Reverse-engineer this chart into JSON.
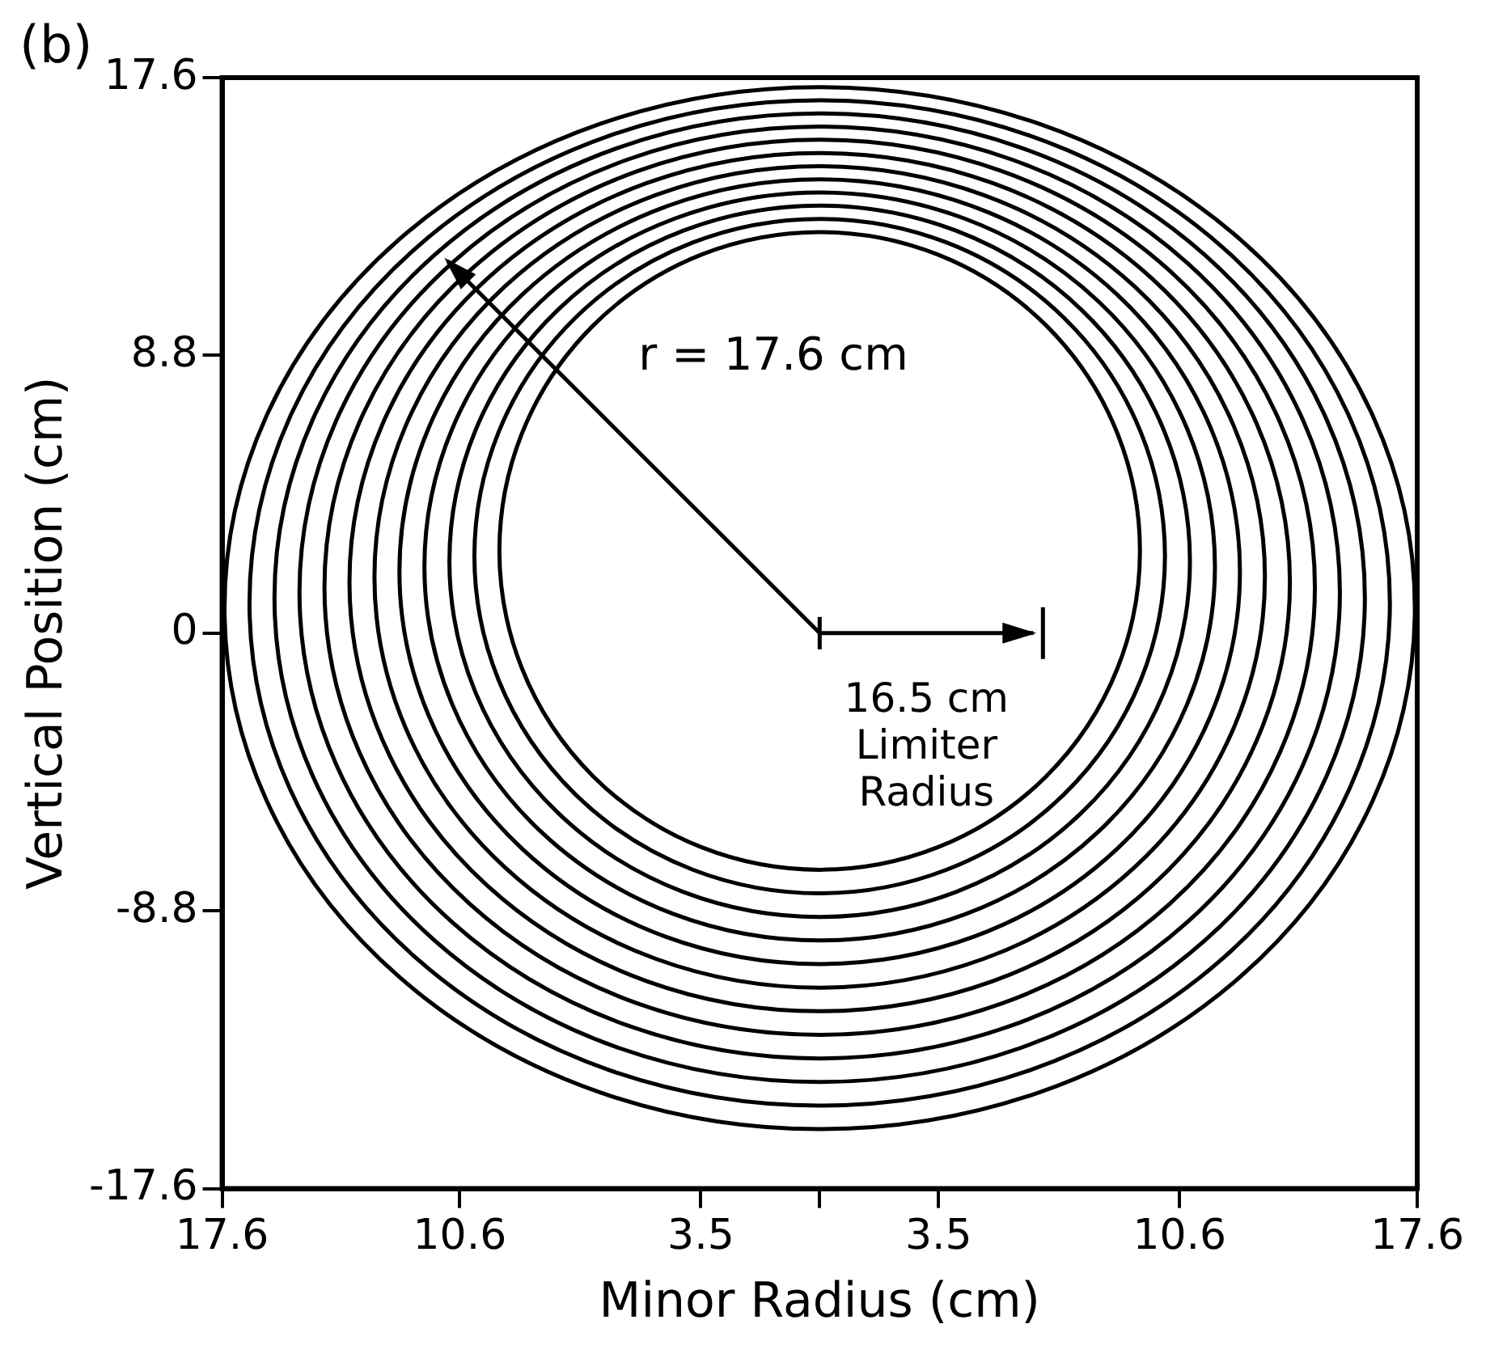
{
  "chart_data": {
    "type": "line",
    "xlabel": "Minor Radius (cm)",
    "ylabel": "Vertical Position (cm)",
    "annotations": [
      "(b)",
      "r = 17.6 cm",
      "16.5 cm\nLimiter\nRadius"
    ],
    "xlim": [
      -17.6,
      17.6
    ],
    "ylim": [
      -17.6,
      17.6
    ],
    "xticks": [
      {
        "value": -17.6,
        "label": "17.6"
      },
      {
        "value": -10.6,
        "label": "10.6"
      },
      {
        "value": -3.5,
        "label": "3.5"
      },
      {
        "value": 0,
        "label": null
      },
      3.5,
      10.6,
      17.6
    ],
    "yticks": [
      -17.6,
      -8.8,
      0,
      8.8,
      17.6
    ],
    "grid": false,
    "legend": false
  }
}
